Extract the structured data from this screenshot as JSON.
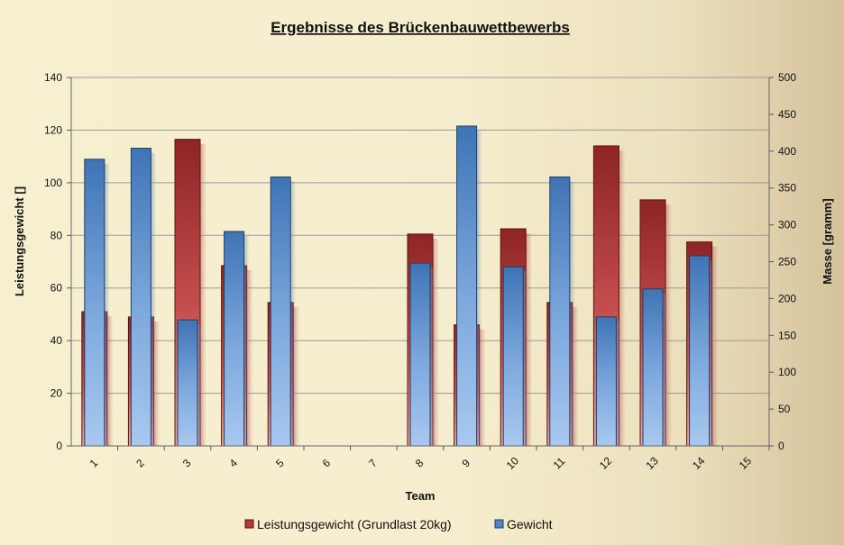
{
  "chart_data": {
    "type": "bar",
    "title": "Ergebnisse des Brückenbauwettbewerbs",
    "xlabel": "Team",
    "ylabel": "Leistungsgewicht []",
    "y2label": "Masse [gramm]",
    "categories": [
      "1",
      "2",
      "3",
      "4",
      "5",
      "6",
      "7",
      "8",
      "9",
      "10",
      "11",
      "12",
      "13",
      "14",
      "15"
    ],
    "ylim": [
      0,
      140
    ],
    "y2lim": [
      0,
      500
    ],
    "yticks": [
      "0",
      "20",
      "40",
      "60",
      "80",
      "100",
      "120",
      "140"
    ],
    "y2ticks": [
      "0",
      "50",
      "100",
      "150",
      "200",
      "250",
      "300",
      "350",
      "400",
      "450",
      "500"
    ],
    "grid": true,
    "legend_position": "bottom",
    "series": [
      {
        "name": "Leistungsgewicht (Grundlast 20kg)",
        "axis": "left",
        "color": "#b03a3a",
        "values": [
          51,
          49,
          116.5,
          68.5,
          54.5,
          null,
          null,
          80.5,
          46,
          82.5,
          54.5,
          114,
          93.5,
          77.5,
          null
        ]
      },
      {
        "name": "Gewicht",
        "axis": "right",
        "color": "#4f86c6",
        "values": [
          389,
          404,
          171,
          291,
          365,
          null,
          null,
          248,
          434,
          243,
          365,
          175,
          213,
          258,
          null
        ]
      }
    ]
  }
}
